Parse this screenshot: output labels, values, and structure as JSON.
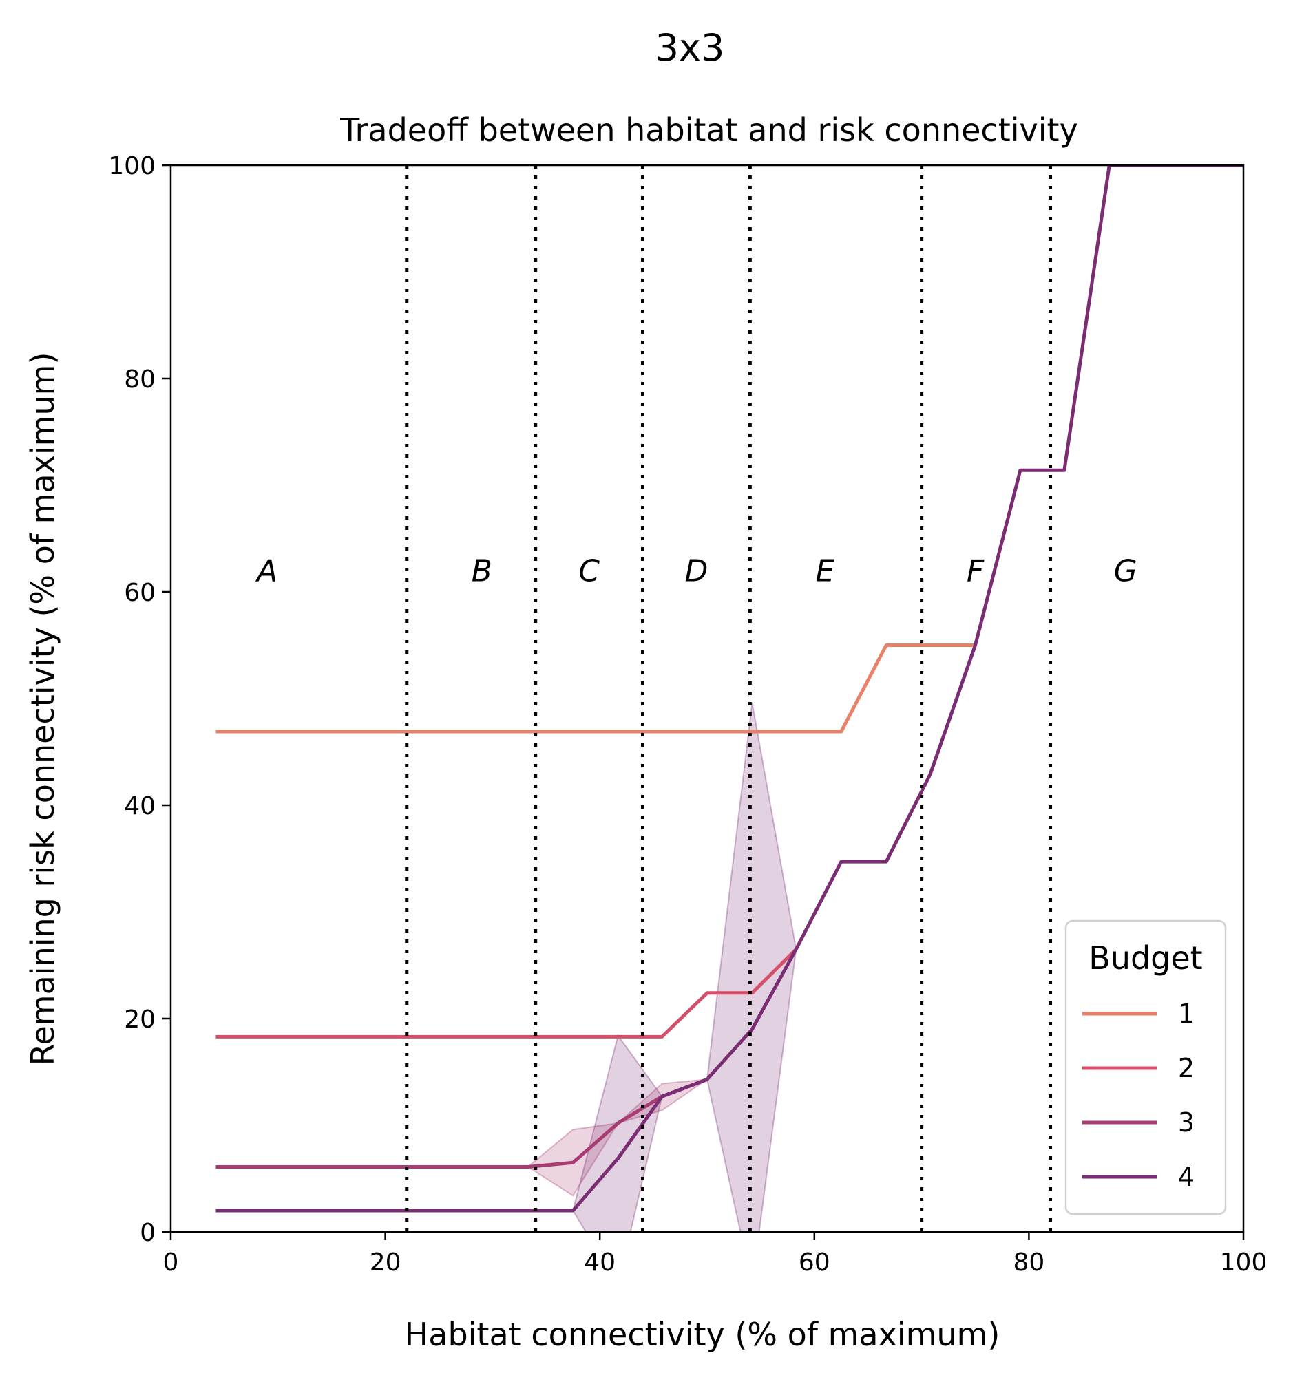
{
  "chart_data": {
    "type": "line",
    "suptitle": "3x3",
    "title": "Tradeoff between habitat and risk connectivity",
    "xlabel": "Habitat connectivity (% of maximum)",
    "ylabel": "Remaining risk connectivity (% of maximum)",
    "xlim": [
      0,
      100
    ],
    "ylim": [
      0,
      100
    ],
    "xticks": [
      0,
      20,
      40,
      60,
      80,
      100
    ],
    "yticks": [
      0,
      20,
      40,
      60,
      80,
      100
    ],
    "grid": false,
    "legend": {
      "title": "Budget",
      "placement": "lower-right"
    },
    "regions": {
      "boundaries": [
        22,
        34,
        44,
        54,
        70,
        82
      ],
      "labels": [
        {
          "text": "A",
          "x": 9,
          "y": 61
        },
        {
          "text": "B",
          "x": 29,
          "y": 61
        },
        {
          "text": "C",
          "x": 39,
          "y": 61
        },
        {
          "text": "D",
          "x": 49,
          "y": 61
        },
        {
          "text": "E",
          "x": 61,
          "y": 61
        },
        {
          "text": "F",
          "x": 75,
          "y": 61
        },
        {
          "text": "G",
          "x": 89,
          "y": 61
        }
      ]
    },
    "series": [
      {
        "name": "1",
        "color": "#e8806a",
        "x": [
          4.2,
          62.5,
          66.7,
          75.0
        ],
        "y": [
          46.9,
          46.9,
          55.0,
          55.0
        ]
      },
      {
        "name": "2",
        "color": "#d4506a",
        "x": [
          4.2,
          45.8,
          50.0,
          54.2,
          58.3
        ],
        "y": [
          18.3,
          18.3,
          22.4,
          22.4,
          26.5
        ]
      },
      {
        "name": "3",
        "color": "#a83c72",
        "x": [
          4.2,
          33.3,
          37.5,
          41.7,
          45.8,
          50.0
        ],
        "y": [
          6.1,
          6.1,
          6.5,
          10.2,
          12.7,
          14.3
        ],
        "ci_low": [
          6.1,
          6.1,
          3.4,
          10.2,
          11.4,
          14.3
        ],
        "ci_high": [
          6.1,
          6.1,
          9.6,
          10.2,
          13.9,
          14.3
        ]
      },
      {
        "name": "4",
        "color": "#7a2d72",
        "x": [
          4.2,
          37.5,
          41.7,
          45.8,
          50.0,
          54.2,
          58.3,
          62.5,
          66.7,
          70.8,
          75.0,
          79.2,
          83.3,
          87.5,
          100.0
        ],
        "y": [
          2.0,
          2.0,
          6.9,
          12.7,
          14.3,
          19.0,
          26.5,
          34.7,
          34.7,
          42.9,
          55.0,
          71.4,
          71.4,
          100.0,
          100.0
        ],
        "ci_low": [
          2.0,
          2.0,
          -5.0,
          12.7,
          14.3,
          -5.0,
          26.5,
          34.7,
          34.7,
          42.9,
          55.0,
          71.4,
          71.4,
          100.0,
          100.0
        ],
        "ci_high": [
          2.0,
          2.0,
          18.4,
          12.7,
          14.3,
          49.6,
          26.5,
          34.7,
          34.7,
          42.9,
          55.0,
          71.4,
          71.4,
          100.0,
          100.0
        ]
      }
    ]
  }
}
